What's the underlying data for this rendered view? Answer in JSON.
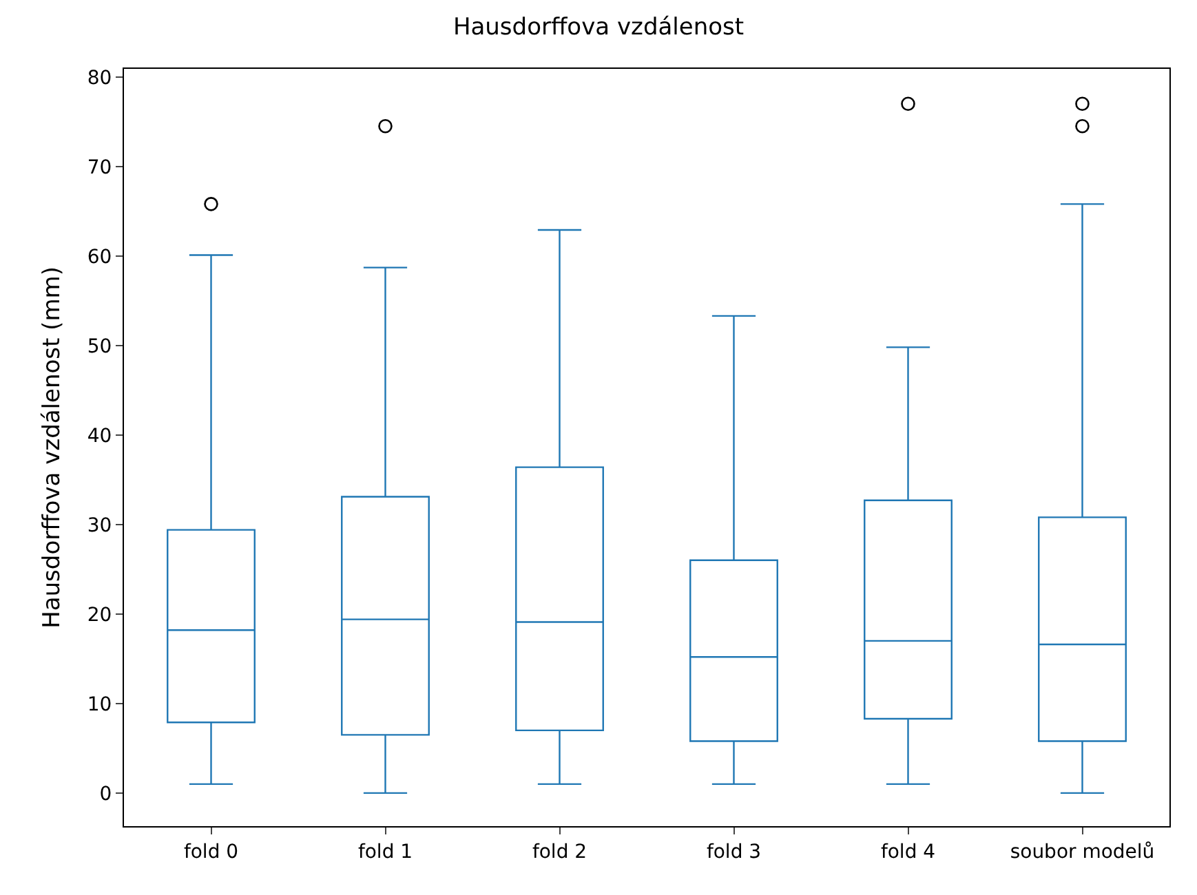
{
  "chart_data": {
    "type": "box",
    "title": "Hausdorffova vzdálenost",
    "ylabel": "Hausdorffova vzdálenost (mm)",
    "categories": [
      "fold 0",
      "fold 1",
      "fold 2",
      "fold 3",
      "fold 4",
      "soubor modelů"
    ],
    "ylim": [
      -3.7,
      80.9
    ],
    "yticks": [
      0,
      10,
      20,
      30,
      40,
      50,
      60,
      70,
      80
    ],
    "series": [
      {
        "color": "#1f77b4",
        "boxes": [
          {
            "low": 1,
            "q1": 7.9,
            "median": 18.2,
            "q3": 29.4,
            "high": 60.1,
            "outliers": [
              65.8
            ]
          },
          {
            "low": 0,
            "q1": 6.5,
            "median": 19.4,
            "q3": 33.1,
            "high": 58.7,
            "outliers": [
              74.5
            ]
          },
          {
            "low": 1,
            "q1": 7.0,
            "median": 19.1,
            "q3": 36.4,
            "high": 62.9
          },
          {
            "low": 1,
            "q1": 5.8,
            "median": 15.2,
            "q3": 26.0,
            "high": 53.3
          },
          {
            "low": 1,
            "q1": 8.3,
            "median": 17.0,
            "q3": 32.7,
            "high": 49.8,
            "outliers": [
              77.0
            ]
          },
          {
            "low": 0,
            "q1": 5.8,
            "median": 16.6,
            "q3": 30.8,
            "high": 65.8,
            "outliers": [
              74.5,
              77.0
            ]
          }
        ]
      }
    ]
  }
}
